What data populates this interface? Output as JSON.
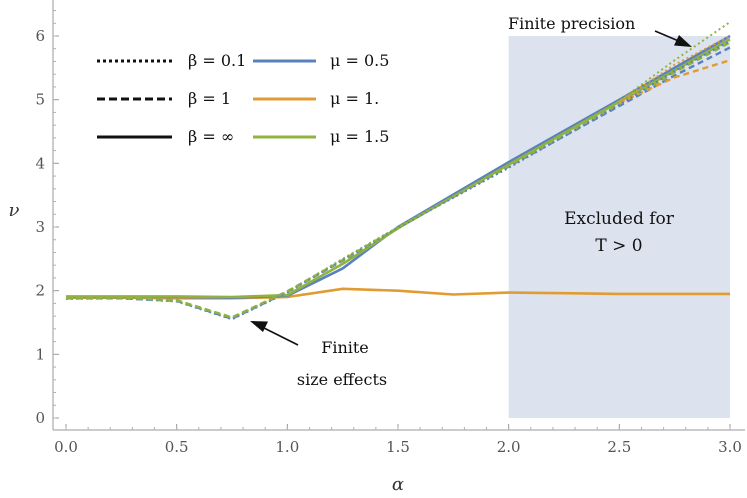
{
  "chart_data": {
    "type": "line",
    "xlabel": "α",
    "ylabel": "ν",
    "xlim": [
      -0.05,
      3.05
    ],
    "ylim": [
      -0.1,
      6.55
    ],
    "x_ticks": [
      {
        "value": 0.0,
        "label": "0.0"
      },
      {
        "value": 0.5,
        "label": "0.5"
      },
      {
        "value": 1.0,
        "label": "1.0"
      },
      {
        "value": 1.5,
        "label": "1.5"
      },
      {
        "value": 2.0,
        "label": "2.0"
      },
      {
        "value": 2.5,
        "label": "2.5"
      },
      {
        "value": 3.0,
        "label": "3.0"
      }
    ],
    "y_ticks": [
      {
        "value": 0,
        "label": "0"
      },
      {
        "value": 1,
        "label": "1"
      },
      {
        "value": 2,
        "label": "2"
      },
      {
        "value": 3,
        "label": "3"
      },
      {
        "value": 4,
        "label": "4"
      },
      {
        "value": 5,
        "label": "5"
      },
      {
        "value": 6,
        "label": "6"
      }
    ],
    "grid": false,
    "legend_position": "top-left",
    "legend": {
      "line_styles": [
        {
          "label": "β = 0.1",
          "style": "dotted"
        },
        {
          "label": "β = 1",
          "style": "dashed"
        },
        {
          "label": "β = ∞",
          "style": "solid"
        }
      ],
      "colors": [
        {
          "label": "μ = 0.5",
          "color": "#5a80bf"
        },
        {
          "label": "μ = 1.",
          "color": "#e19b33"
        },
        {
          "label": "μ = 1.5",
          "color": "#8fb33e"
        }
      ]
    },
    "shaded_region": {
      "x": [
        2.0,
        3.0
      ],
      "y": [
        0,
        6.0
      ],
      "color": "#dce3ee",
      "label_lines": [
        "Excluded for",
        "T > 0"
      ]
    },
    "annotations": [
      {
        "lines": [
          "Finite precision"
        ],
        "arrow_to": [
          2.88,
          5.9
        ]
      },
      {
        "lines": [
          "Finite",
          "size effects"
        ],
        "arrow_to": [
          0.85,
          1.55
        ]
      }
    ],
    "series": [
      {
        "color": "#e19b33",
        "style": "solid",
        "x": [
          0,
          0.25,
          0.5,
          0.75,
          1.0,
          1.25,
          1.5,
          1.75,
          2.0,
          2.25,
          2.5,
          2.75,
          3.0
        ],
        "y": [
          1.89,
          1.89,
          1.88,
          1.88,
          1.9,
          2.03,
          2.0,
          1.94,
          1.97,
          1.96,
          1.95,
          1.95,
          1.95
        ]
      },
      {
        "color": "#5a80bf",
        "style": "solid",
        "x": [
          0,
          0.25,
          0.5,
          0.75,
          1.0,
          1.25,
          1.5,
          2.0,
          2.5,
          3.0
        ],
        "y": [
          1.9,
          1.9,
          1.9,
          1.89,
          1.92,
          2.35,
          3.0,
          4.02,
          5.0,
          6.0
        ]
      },
      {
        "color": "#8fb33e",
        "style": "solid",
        "x": [
          0,
          0.25,
          0.5,
          0.75,
          1.0,
          1.25,
          1.5,
          2.0,
          2.5,
          3.0
        ],
        "y": [
          1.91,
          1.91,
          1.91,
          1.9,
          1.93,
          2.42,
          2.98,
          3.98,
          4.97,
          5.95
        ]
      },
      {
        "color": "#5a80bf",
        "style": "dashed",
        "x": [
          0,
          0.25,
          0.5,
          0.75,
          1.0,
          1.25,
          1.5,
          2.0,
          2.5,
          2.75,
          3.0
        ],
        "y": [
          1.88,
          1.88,
          1.84,
          1.56,
          1.98,
          2.47,
          2.99,
          3.95,
          4.9,
          5.38,
          5.82
        ]
      },
      {
        "color": "#8fb33e",
        "style": "dashed",
        "x": [
          0,
          0.25,
          0.5,
          0.75,
          1.0,
          1.25,
          1.5,
          2.0,
          2.5,
          2.75,
          3.0
        ],
        "y": [
          1.89,
          1.89,
          1.85,
          1.58,
          1.99,
          2.48,
          2.99,
          3.96,
          4.93,
          5.43,
          5.9
        ]
      },
      {
        "color": "#e19b33",
        "style": "dashed",
        "x": [
          2.5,
          2.75,
          3.0
        ],
        "y": [
          4.95,
          5.35,
          5.62
        ]
      },
      {
        "color": "#5a80bf",
        "style": "dotted",
        "x": [
          0,
          0.25,
          0.5,
          0.75,
          1.0,
          1.25,
          1.5,
          2.0,
          2.5,
          2.75,
          3.0
        ],
        "y": [
          1.87,
          1.88,
          1.83,
          1.55,
          1.97,
          2.49,
          2.99,
          3.93,
          4.92,
          5.45,
          5.92
        ]
      },
      {
        "color": "#8fb33e",
        "style": "dotted",
        "x": [
          0,
          0.25,
          0.5,
          0.75,
          1.0,
          1.25,
          1.5,
          2.0,
          2.5,
          2.75,
          3.0
        ],
        "y": [
          1.88,
          1.89,
          1.84,
          1.57,
          1.98,
          2.5,
          3.0,
          3.97,
          4.98,
          5.62,
          6.22
        ]
      },
      {
        "color": "#e19b33",
        "style": "dotted",
        "x": [
          2.5,
          2.75,
          3.0
        ],
        "y": [
          4.97,
          5.55,
          6.0
        ]
      }
    ]
  }
}
